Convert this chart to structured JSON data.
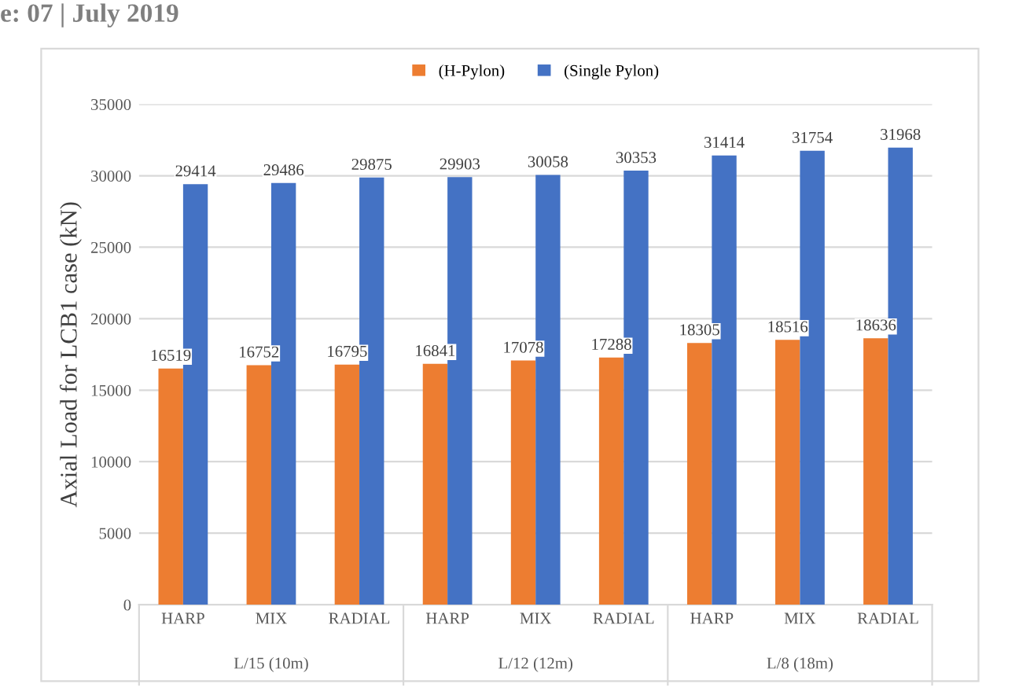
{
  "chart_data": {
    "type": "bar",
    "ylabel": "Axial Load for LCB1 case (kN)",
    "categories": [
      "HARP",
      "MIX",
      "RADIAL",
      "HARP",
      "MIX",
      "RADIAL",
      "HARP",
      "MIX",
      "RADIAL"
    ],
    "series": [
      {
        "name": "(H-Pylon)",
        "color": "#ed7d31",
        "values": [
          16519,
          16752,
          16795,
          16841,
          17078,
          17288,
          18305,
          18516,
          18636
        ]
      },
      {
        "name": "(Single Pylon)",
        "color": "#4472c4",
        "values": [
          29414,
          29486,
          29875,
          29903,
          30058,
          30353,
          31414,
          31754,
          31968
        ]
      }
    ],
    "ylim": [
      0,
      35000
    ],
    "yticks": [
      0,
      5000,
      10000,
      15000,
      20000,
      25000,
      30000,
      35000
    ],
    "grid": "y",
    "legend": "top",
    "data_labels": true,
    "annotations": [
      "e: 07 | July 2019",
      "L/15 (10m)",
      "L/12 (12m)",
      "L/8 (18m)"
    ]
  }
}
